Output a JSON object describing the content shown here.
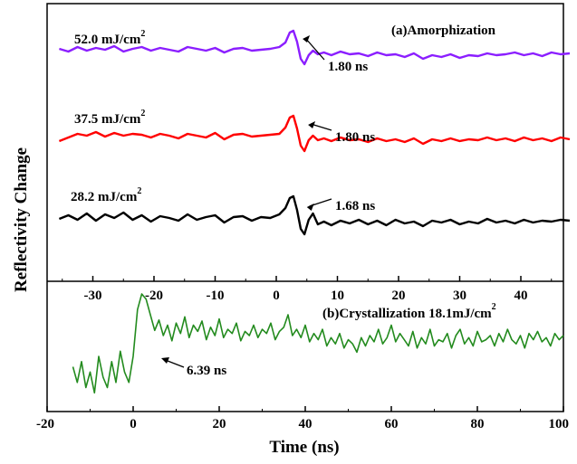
{
  "chart_data": [
    {
      "type": "line",
      "panel": "a",
      "title": "(a)Amorphization",
      "ylabel": "Reflectivity Change",
      "xlabel": "",
      "x_ticks": [
        "-30",
        "-20",
        "-10",
        "0",
        "10",
        "20",
        "30",
        "40"
      ],
      "xlim": [
        -37,
        49
      ],
      "series": [
        {
          "name": "52.0 mJ/cm",
          "name_sup": "2",
          "color": "#8b1eff",
          "annotation": "1.80 ns",
          "annotation_x": 4.3,
          "x": [
            -35.5,
            -34,
            -32.5,
            -31,
            -29.5,
            -28,
            -26.5,
            -25,
            -23.5,
            -22,
            -20.5,
            -19,
            -17.5,
            -16,
            -14.5,
            -13,
            -11.5,
            -10,
            -8.5,
            -7,
            -5.5,
            -4,
            -2.5,
            -1,
            0.5,
            1.5,
            2.2,
            2.8,
            3.4,
            4.0,
            4.6,
            5.3,
            6.0,
            6.8,
            7.8,
            9,
            10.5,
            12,
            13.5,
            15,
            16.5,
            18,
            19.5,
            21,
            22.5,
            24,
            25.5,
            27,
            28.5,
            30,
            31.5,
            33,
            34.5,
            36,
            37.5,
            39,
            40.5,
            42,
            43.5,
            45,
            46.5,
            48
          ],
          "values": [
            0.1,
            -0.2,
            0.3,
            -0.1,
            0.2,
            0.0,
            0.4,
            -0.2,
            0.1,
            0.3,
            -0.1,
            0.2,
            0.0,
            -0.2,
            0.3,
            0.1,
            -0.1,
            0.2,
            -0.3,
            0.1,
            0.2,
            -0.1,
            0.0,
            0.1,
            0.3,
            0.8,
            1.9,
            2.1,
            0.9,
            -1.0,
            -1.6,
            -0.6,
            -0.1,
            -0.5,
            -0.3,
            -0.6,
            -0.2,
            -0.5,
            -0.4,
            -0.7,
            -0.3,
            -0.6,
            -0.5,
            -0.8,
            -0.4,
            -1.0,
            -0.6,
            -0.8,
            -0.5,
            -0.9,
            -0.6,
            -0.7,
            -0.4,
            -0.6,
            -0.5,
            -0.3,
            -0.6,
            -0.4,
            -0.7,
            -0.3,
            -0.5,
            -0.4
          ]
        },
        {
          "name": "37.5 mJ/cm",
          "name_sup": "2",
          "color": "#ff0000",
          "annotation": "1.80 ns",
          "annotation_x": 5.2,
          "x": [
            -35.5,
            -34,
            -32.5,
            -31,
            -29.5,
            -28,
            -26.5,
            -25,
            -23.5,
            -22,
            -20.5,
            -19,
            -17.5,
            -16,
            -14.5,
            -13,
            -11.5,
            -10,
            -8.5,
            -7,
            -5.5,
            -4,
            -2.5,
            -1,
            0.5,
            1.5,
            2.2,
            2.8,
            3.4,
            4.0,
            4.6,
            5.3,
            6.0,
            6.8,
            7.8,
            9,
            10.5,
            12,
            13.5,
            15,
            16.5,
            18,
            19.5,
            21,
            22.5,
            24,
            25.5,
            27,
            28.5,
            30,
            31.5,
            33,
            34.5,
            36,
            37.5,
            39,
            40.5,
            42,
            43.5,
            45,
            46.5,
            48
          ],
          "values": [
            -0.6,
            -0.2,
            0.2,
            0.0,
            0.4,
            -0.1,
            0.3,
            0.0,
            0.2,
            0.1,
            -0.2,
            0.2,
            0.0,
            -0.3,
            0.2,
            0.0,
            -0.2,
            0.3,
            -0.4,
            0.1,
            0.2,
            -0.1,
            0.0,
            0.1,
            0.2,
            0.9,
            2.0,
            2.2,
            0.8,
            -1.1,
            -1.7,
            -0.5,
            0.0,
            -0.5,
            -0.3,
            -0.6,
            -0.2,
            -0.5,
            -0.4,
            -0.7,
            -0.3,
            -0.6,
            -0.4,
            -0.7,
            -0.3,
            -0.9,
            -0.4,
            -0.6,
            -0.3,
            -0.6,
            -0.4,
            -0.5,
            -0.2,
            -0.5,
            -0.3,
            -0.6,
            -0.2,
            -0.5,
            -0.3,
            -0.6,
            -0.2,
            -0.4
          ]
        },
        {
          "name": "28.2 mJ/cm",
          "name_sup": "2",
          "color": "#000000",
          "annotation": "1.68 ns",
          "annotation_x": 5.0,
          "x": [
            -35.5,
            -34,
            -32.5,
            -31,
            -29.5,
            -28,
            -26.5,
            -25,
            -23.5,
            -22,
            -20.5,
            -19,
            -17.5,
            -16,
            -14.5,
            -13,
            -11.5,
            -10,
            -8.5,
            -7,
            -5.5,
            -4,
            -2.5,
            -1,
            0.5,
            1.5,
            2.2,
            2.8,
            3.4,
            4.0,
            4.6,
            5.3,
            6.0,
            6.8,
            7.8,
            9,
            10.5,
            12,
            13.5,
            15,
            16.5,
            18,
            19.5,
            21,
            22.5,
            24,
            25.5,
            27,
            28.5,
            30,
            31.5,
            33,
            34.5,
            36,
            37.5,
            39,
            40.5,
            42,
            43.5,
            45,
            46.5,
            48
          ],
          "values": [
            -0.1,
            0.3,
            -0.2,
            0.5,
            -0.3,
            0.4,
            0.0,
            0.6,
            -0.2,
            0.3,
            -0.4,
            0.2,
            0.0,
            -0.3,
            0.4,
            -0.2,
            0.1,
            0.3,
            -0.5,
            0.1,
            0.2,
            -0.3,
            0.1,
            0.0,
            0.4,
            1.1,
            2.2,
            2.4,
            0.9,
            -1.2,
            -1.8,
            -0.2,
            0.5,
            -0.7,
            -0.4,
            -0.8,
            -0.3,
            -0.6,
            -0.2,
            -0.7,
            -0.3,
            -0.8,
            -0.2,
            -0.6,
            -0.4,
            -0.9,
            -0.3,
            -0.5,
            -0.2,
            -0.7,
            -0.4,
            -0.6,
            -0.1,
            -0.5,
            -0.3,
            -0.6,
            -0.2,
            -0.5,
            -0.3,
            -0.4,
            -0.2,
            -0.3
          ]
        }
      ]
    },
    {
      "type": "line",
      "panel": "b",
      "title": "(b)Crystallization 18.1mJ/cm",
      "title_sup": "2",
      "xlabel": "Time (ns)",
      "x_ticks": [
        "-20",
        "0",
        "20",
        "40",
        "60",
        "80",
        "100"
      ],
      "xlim": [
        -20,
        100
      ],
      "series": [
        {
          "name": "",
          "color": "#238b1e",
          "annotation": "6.39 ns",
          "annotation_x": 5.0,
          "x": [
            -14,
            -13,
            -12,
            -11,
            -10,
            -9,
            -8,
            -7,
            -6,
            -5,
            -4,
            -3,
            -2,
            -1,
            0,
            1,
            2,
            3,
            4,
            5,
            6,
            7,
            8,
            9,
            10,
            11,
            12,
            13,
            14,
            15,
            16,
            17,
            18,
            19,
            20,
            21,
            22,
            23,
            24,
            25,
            26,
            27,
            28,
            29,
            30,
            31,
            32,
            33,
            34,
            35,
            36,
            37,
            38,
            39,
            40,
            41,
            42,
            43,
            44,
            45,
            46,
            47,
            48,
            49,
            50,
            51,
            52,
            53,
            54,
            55,
            56,
            57,
            58,
            59,
            60,
            61,
            62,
            63,
            64,
            65,
            66,
            67,
            68,
            69,
            70,
            71,
            72,
            73,
            74,
            75,
            76,
            77,
            78,
            79,
            80,
            81,
            82,
            83,
            84,
            85,
            86,
            87,
            88,
            89,
            90,
            91,
            92,
            93,
            94,
            95,
            96,
            97,
            98,
            99,
            100
          ],
          "values": [
            0.3,
            0.15,
            0.35,
            0.1,
            0.25,
            0.05,
            0.4,
            0.2,
            0.1,
            0.35,
            0.15,
            0.45,
            0.25,
            0.15,
            0.4,
            0.85,
            1.0,
            0.95,
            0.8,
            0.65,
            0.75,
            0.6,
            0.7,
            0.55,
            0.72,
            0.62,
            0.78,
            0.58,
            0.7,
            0.64,
            0.74,
            0.56,
            0.68,
            0.6,
            0.76,
            0.58,
            0.66,
            0.62,
            0.72,
            0.55,
            0.64,
            0.6,
            0.7,
            0.58,
            0.66,
            0.62,
            0.72,
            0.56,
            0.64,
            0.68,
            0.8,
            0.6,
            0.66,
            0.58,
            0.7,
            0.54,
            0.62,
            0.56,
            0.66,
            0.5,
            0.58,
            0.52,
            0.62,
            0.48,
            0.56,
            0.52,
            0.44,
            0.58,
            0.5,
            0.6,
            0.54,
            0.66,
            0.52,
            0.58,
            0.7,
            0.54,
            0.62,
            0.56,
            0.5,
            0.64,
            0.48,
            0.58,
            0.52,
            0.66,
            0.5,
            0.56,
            0.54,
            0.62,
            0.48,
            0.6,
            0.66,
            0.52,
            0.58,
            0.5,
            0.64,
            0.54,
            0.56,
            0.6,
            0.5,
            0.62,
            0.54,
            0.66,
            0.56,
            0.52,
            0.6,
            0.48,
            0.62,
            0.56,
            0.64,
            0.54,
            0.58,
            0.5,
            0.62,
            0.56,
            0.6
          ]
        }
      ]
    }
  ]
}
